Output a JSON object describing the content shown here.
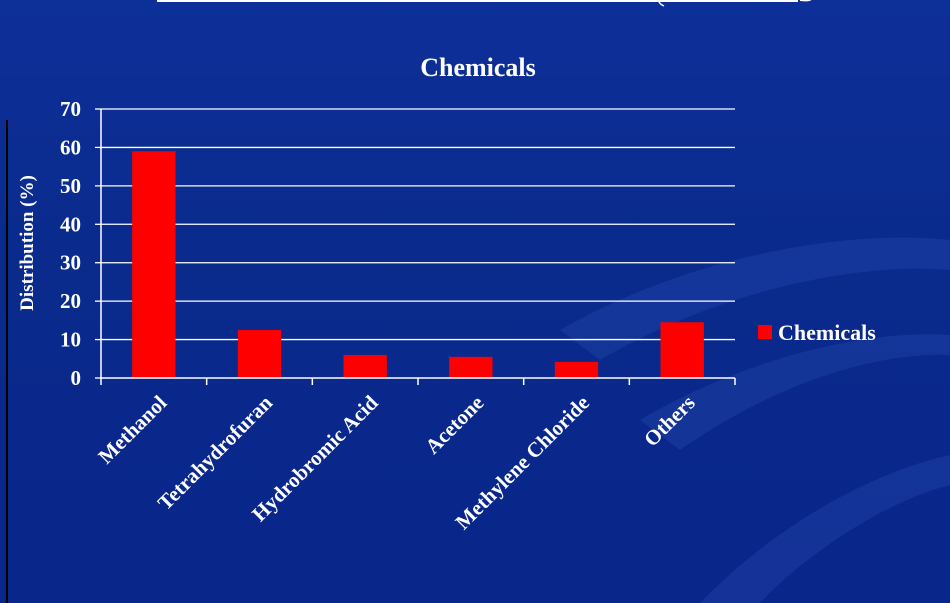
{
  "chart_data": {
    "type": "bar",
    "title": "Chemicals",
    "xlabel": "",
    "ylabel": "Distribution (%)",
    "categories": [
      "Methanol",
      "Tetrahydrofuran",
      "Hydrobromic Acid",
      "Acetone",
      "Methylene Chloride",
      "Others"
    ],
    "series": [
      {
        "name": "Chemicals",
        "values": [
          59,
          12.5,
          6,
          5.5,
          4.2,
          14.5
        ]
      }
    ],
    "ylim": [
      0,
      70
    ],
    "yticks": [
      "0",
      "10",
      "20",
      "30",
      "40",
      "50",
      "60",
      "70"
    ],
    "grid": true,
    "legend_position": "right",
    "bar_color": "#ff0000",
    "background_color": "#0a2a8c",
    "text_color": "#ffffff"
  }
}
